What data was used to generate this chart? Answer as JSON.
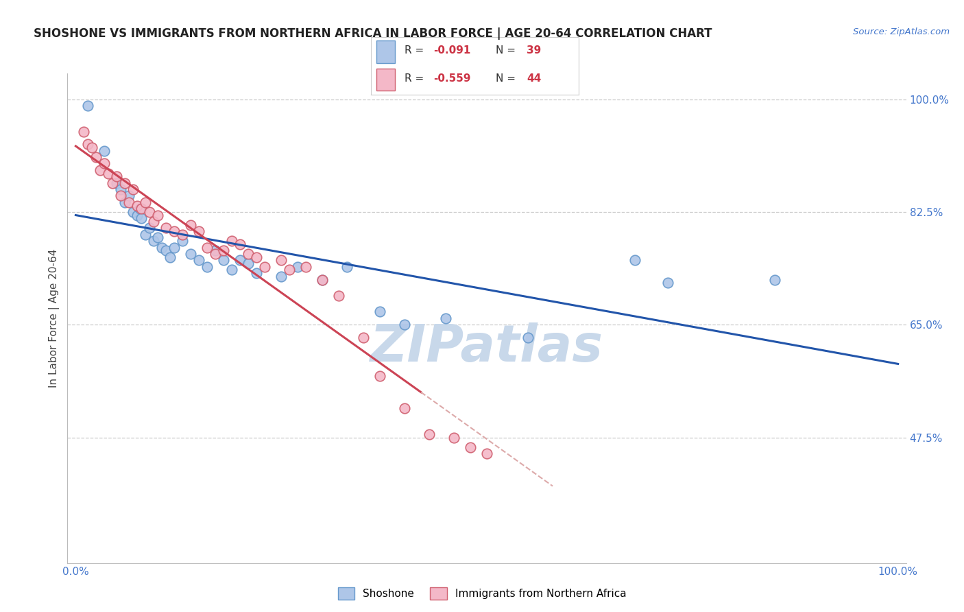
{
  "title": "SHOSHONE VS IMMIGRANTS FROM NORTHERN AFRICA IN LABOR FORCE | AGE 20-64 CORRELATION CHART",
  "source_text": "Source: ZipAtlas.com",
  "ylabel": "In Labor Force | Age 20-64",
  "ymin": 28.0,
  "ymax": 104.0,
  "xmin": -1.0,
  "xmax": 101.0,
  "shoshone_color": "#aec6e8",
  "shoshone_edge_color": "#6699cc",
  "immigrants_color": "#f4b8c8",
  "immigrants_edge_color": "#d06070",
  "trend_shoshone_color": "#2255aa",
  "trend_immigrants_color": "#cc4455",
  "trend_immigrants_dashed_color": "#ddaaaa",
  "watermark_color": "#c8d8ea",
  "shoshone_R": "-0.091",
  "shoshone_N": "39",
  "immigrants_R": "-0.559",
  "immigrants_N": "44",
  "gridline_color": "#cccccc",
  "gridline_y": [
    100.0,
    82.5,
    65.0,
    47.5
  ],
  "shoshone_x": [
    1.5,
    3.5,
    5.0,
    5.5,
    6.0,
    6.5,
    7.0,
    7.5,
    7.8,
    8.0,
    8.5,
    9.0,
    9.5,
    10.0,
    10.5,
    11.0,
    11.5,
    12.0,
    13.0,
    14.0,
    15.0,
    16.0,
    17.0,
    18.0,
    19.0,
    20.0,
    21.0,
    22.0,
    25.0,
    27.0,
    30.0,
    33.0,
    37.0,
    40.0,
    45.0,
    55.0,
    68.0,
    72.0,
    85.0
  ],
  "shoshone_y": [
    99.0,
    92.0,
    87.0,
    86.0,
    84.0,
    85.0,
    82.5,
    82.0,
    83.0,
    81.5,
    79.0,
    80.0,
    78.0,
    78.5,
    77.0,
    76.5,
    75.5,
    77.0,
    78.0,
    76.0,
    75.0,
    74.0,
    76.5,
    75.0,
    73.5,
    75.0,
    74.5,
    73.0,
    72.5,
    74.0,
    72.0,
    74.0,
    67.0,
    65.0,
    66.0,
    63.0,
    75.0,
    71.5,
    72.0
  ],
  "immigrants_x": [
    1.0,
    1.5,
    2.0,
    2.5,
    3.0,
    3.5,
    4.0,
    4.5,
    5.0,
    5.5,
    6.0,
    6.5,
    7.0,
    7.5,
    8.0,
    8.5,
    9.0,
    9.5,
    10.0,
    11.0,
    12.0,
    13.0,
    14.0,
    15.0,
    16.0,
    17.0,
    18.0,
    19.0,
    20.0,
    21.0,
    22.0,
    23.0,
    25.0,
    26.0,
    28.0,
    30.0,
    32.0,
    35.0,
    37.0,
    40.0,
    43.0,
    46.0,
    48.0,
    50.0
  ],
  "immigrants_y": [
    95.0,
    93.0,
    92.5,
    91.0,
    89.0,
    90.0,
    88.5,
    87.0,
    88.0,
    85.0,
    87.0,
    84.0,
    86.0,
    83.5,
    83.0,
    84.0,
    82.5,
    81.0,
    82.0,
    80.0,
    79.5,
    79.0,
    80.5,
    79.5,
    77.0,
    76.0,
    76.5,
    78.0,
    77.5,
    76.0,
    75.5,
    74.0,
    75.0,
    73.5,
    74.0,
    72.0,
    69.5,
    63.0,
    57.0,
    52.0,
    48.0,
    47.5,
    46.0,
    45.0
  ],
  "trend_x_start": 0.0,
  "trend_x_end": 100.0,
  "immigrants_solid_end": 42.0,
  "immigrants_dash_end": 58.0
}
